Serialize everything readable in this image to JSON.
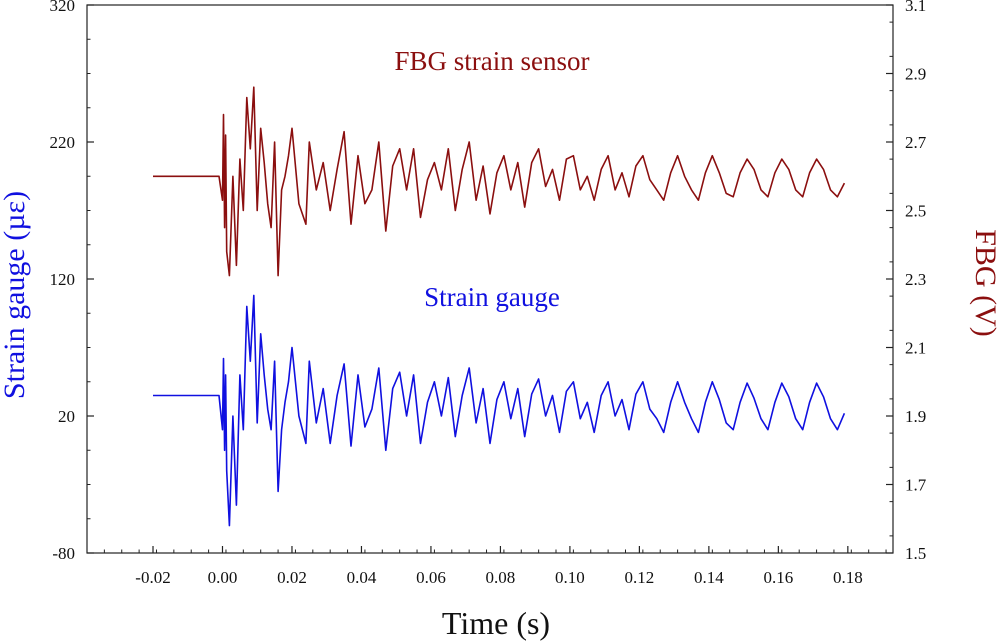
{
  "chart_data": {
    "type": "line",
    "xlabel": "Time (s)",
    "ylabel_left": "Strain gauge (µε)",
    "ylabel_right": "FBG (V)",
    "x_ticks": [
      "-0.02",
      "0.00",
      "0.02",
      "0.04",
      "0.06",
      "0.08",
      "0.10",
      "0.12",
      "0.14",
      "0.16",
      "0.18"
    ],
    "y_left_ticks": [
      "320",
      "220",
      "120",
      "20",
      "-80"
    ],
    "y_right_ticks": [
      "3.1",
      "2.9",
      "2.7",
      "2.5",
      "2.3",
      "2.1",
      "1.9",
      "1.7",
      "1.5"
    ],
    "xlim": [
      -0.039,
      0.193
    ],
    "ylim_left": [
      -80,
      320
    ],
    "ylim_right": [
      1.5,
      3.1
    ],
    "grid": false,
    "annotations": {
      "fbg": "FBG strain sensor",
      "gauge": "Strain gauge"
    },
    "series": [
      {
        "name": "FBG strain sensor",
        "axis": "right",
        "color": "#8b0f0f",
        "baseline": 2.6,
        "x": [
          -0.02,
          -0.001,
          0.0,
          0.0003,
          0.0006,
          0.0009,
          0.0012,
          0.002,
          0.003,
          0.004,
          0.005,
          0.006,
          0.007,
          0.008,
          0.009,
          0.01,
          0.011,
          0.012,
          0.013,
          0.014,
          0.015,
          0.016,
          0.017,
          0.018,
          0.019,
          0.02,
          0.022,
          0.024,
          0.025,
          0.027,
          0.029,
          0.031,
          0.033,
          0.035,
          0.037,
          0.039,
          0.041,
          0.043,
          0.045,
          0.047,
          0.049,
          0.051,
          0.053,
          0.055,
          0.057,
          0.059,
          0.061,
          0.063,
          0.065,
          0.067,
          0.069,
          0.071,
          0.073,
          0.075,
          0.077,
          0.079,
          0.081,
          0.083,
          0.085,
          0.087,
          0.089,
          0.091,
          0.093,
          0.095,
          0.097,
          0.099,
          0.101,
          0.103,
          0.105,
          0.107,
          0.109,
          0.111,
          0.113,
          0.115,
          0.117,
          0.119,
          0.121,
          0.123,
          0.125,
          0.127,
          0.129,
          0.131,
          0.133,
          0.135,
          0.137,
          0.139,
          0.141,
          0.143,
          0.145,
          0.147,
          0.149,
          0.151,
          0.153,
          0.155,
          0.157,
          0.159,
          0.161,
          0.163,
          0.165,
          0.167,
          0.169,
          0.171,
          0.173,
          0.175,
          0.177,
          0.179
        ],
        "values": [
          2.6,
          2.6,
          2.53,
          2.78,
          2.45,
          2.72,
          2.38,
          2.31,
          2.6,
          2.34,
          2.65,
          2.5,
          2.83,
          2.68,
          2.86,
          2.5,
          2.74,
          2.64,
          2.52,
          2.45,
          2.7,
          2.31,
          2.56,
          2.6,
          2.66,
          2.74,
          2.52,
          2.46,
          2.7,
          2.56,
          2.64,
          2.5,
          2.62,
          2.73,
          2.46,
          2.66,
          2.52,
          2.56,
          2.7,
          2.44,
          2.63,
          2.68,
          2.56,
          2.68,
          2.48,
          2.59,
          2.64,
          2.56,
          2.68,
          2.5,
          2.62,
          2.7,
          2.53,
          2.63,
          2.49,
          2.61,
          2.66,
          2.56,
          2.64,
          2.51,
          2.64,
          2.68,
          2.57,
          2.62,
          2.53,
          2.65,
          2.66,
          2.56,
          2.6,
          2.53,
          2.62,
          2.66,
          2.56,
          2.61,
          2.54,
          2.63,
          2.66,
          2.59,
          2.56,
          2.53,
          2.61,
          2.66,
          2.6,
          2.56,
          2.53,
          2.61,
          2.66,
          2.61,
          2.55,
          2.54,
          2.61,
          2.65,
          2.62,
          2.56,
          2.54,
          2.61,
          2.65,
          2.62,
          2.56,
          2.54,
          2.61,
          2.65,
          2.62,
          2.56,
          2.54,
          2.58
        ]
      },
      {
        "name": "Strain gauge",
        "axis": "left",
        "color": "#1010e0",
        "baseline": 35,
        "x": [
          -0.02,
          -0.001,
          0.0,
          0.0003,
          0.0006,
          0.0009,
          0.0012,
          0.002,
          0.003,
          0.004,
          0.005,
          0.006,
          0.007,
          0.008,
          0.009,
          0.01,
          0.011,
          0.012,
          0.013,
          0.014,
          0.015,
          0.016,
          0.017,
          0.018,
          0.019,
          0.02,
          0.022,
          0.024,
          0.025,
          0.027,
          0.029,
          0.031,
          0.033,
          0.035,
          0.037,
          0.039,
          0.041,
          0.043,
          0.045,
          0.047,
          0.049,
          0.051,
          0.053,
          0.055,
          0.057,
          0.059,
          0.061,
          0.063,
          0.065,
          0.067,
          0.069,
          0.071,
          0.073,
          0.075,
          0.077,
          0.079,
          0.081,
          0.083,
          0.085,
          0.087,
          0.089,
          0.091,
          0.093,
          0.095,
          0.097,
          0.099,
          0.101,
          0.103,
          0.105,
          0.107,
          0.109,
          0.111,
          0.113,
          0.115,
          0.117,
          0.119,
          0.121,
          0.123,
          0.125,
          0.127,
          0.129,
          0.131,
          0.133,
          0.135,
          0.137,
          0.139,
          0.141,
          0.143,
          0.145,
          0.147,
          0.149,
          0.151,
          0.153,
          0.155,
          0.157,
          0.159,
          0.161,
          0.163,
          0.165,
          0.167,
          0.169,
          0.171,
          0.173,
          0.175,
          0.177,
          0.179
        ],
        "values": [
          35,
          35,
          10,
          62,
          -5,
          50,
          -20,
          -60,
          20,
          -45,
          50,
          10,
          100,
          60,
          108,
          15,
          80,
          50,
          25,
          10,
          60,
          -35,
          10,
          30,
          45,
          70,
          20,
          0,
          60,
          15,
          40,
          0,
          35,
          58,
          -2,
          50,
          12,
          25,
          55,
          -5,
          40,
          52,
          20,
          50,
          0,
          30,
          45,
          20,
          48,
          5,
          35,
          55,
          15,
          40,
          0,
          32,
          45,
          18,
          40,
          5,
          36,
          47,
          20,
          35,
          8,
          38,
          45,
          18,
          30,
          8,
          35,
          45,
          20,
          32,
          10,
          36,
          45,
          25,
          18,
          8,
          30,
          45,
          30,
          18,
          8,
          30,
          45,
          32,
          15,
          10,
          30,
          44,
          33,
          18,
          10,
          30,
          44,
          34,
          18,
          10,
          30,
          44,
          34,
          18,
          10,
          22
        ]
      }
    ]
  }
}
